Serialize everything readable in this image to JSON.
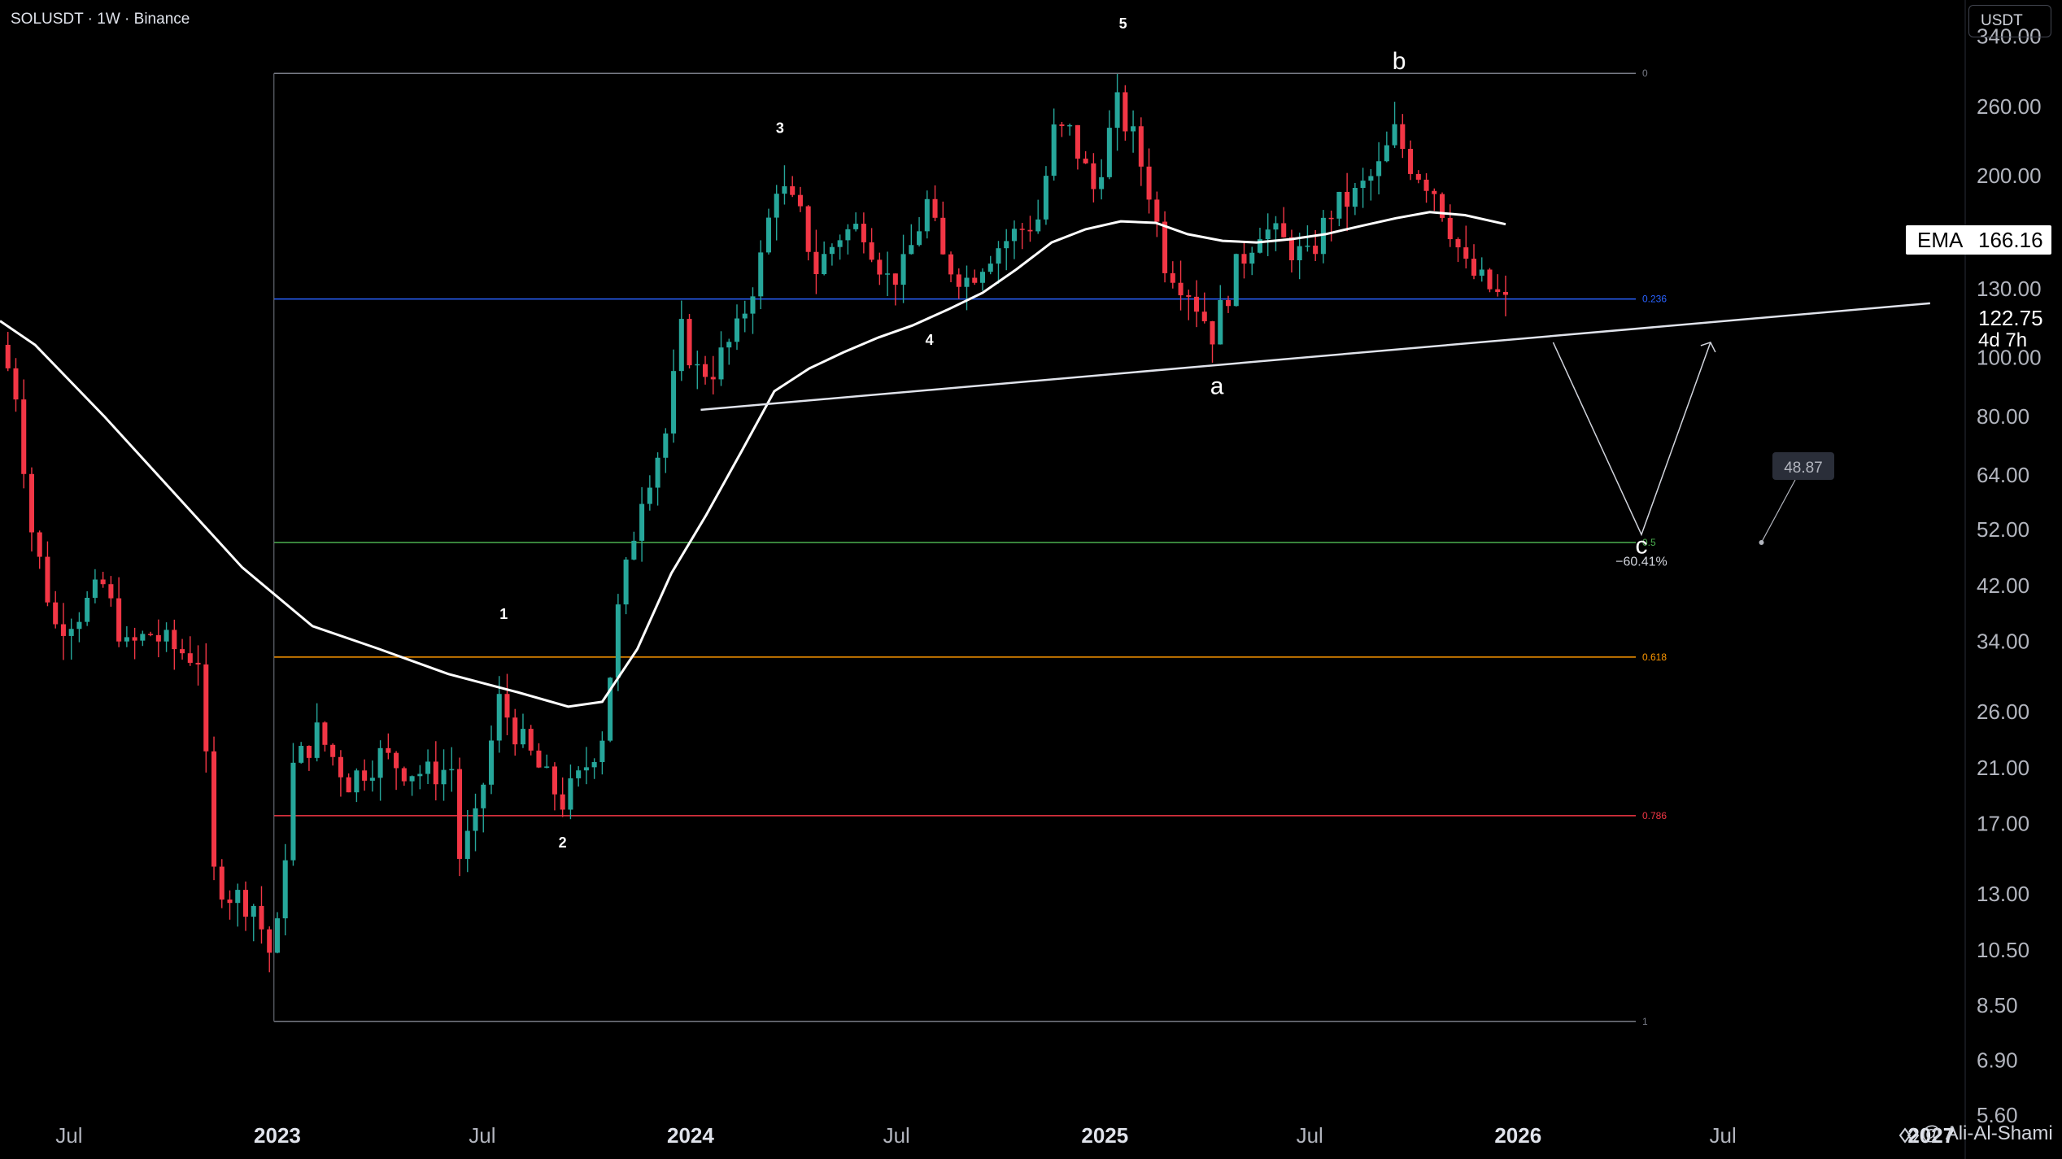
{
  "header": {
    "symbol": "SOLUSDT · 1W · Binance",
    "unit": "USDT"
  },
  "ema": {
    "label": "EMA",
    "value": "166.16"
  },
  "price_now": "122.75",
  "countdown": "4d 7h",
  "watermark": "@ Ali-Al-Shami",
  "annotation": {
    "pct": "−60.41%",
    "price_tag": "48.87"
  },
  "colors": {
    "up": "#26a69a",
    "down": "#f23645",
    "ema": "#ffffff",
    "fib_0": "#787b86",
    "fib_0236": "#2962ff",
    "fib_05": "#4caf50",
    "fib_0618": "#ff9800",
    "fib_0786": "#f23645",
    "fib_1": "#787b86"
  },
  "chart_data": {
    "type": "candlestick",
    "timeframe": "1W",
    "y_scale": "log",
    "ylim": [
      5.2,
      390
    ],
    "xlim": [
      "2022-05-01",
      "2027-01-31"
    ],
    "y_ticks": [
      "340.00",
      "260.00",
      "200.00",
      "130.00",
      "100.00",
      "80.00",
      "64.00",
      "52.00",
      "42.00",
      "34.00",
      "26.00",
      "21.00",
      "17.00",
      "13.00",
      "10.50",
      "8.50",
      "6.90",
      "5.60"
    ],
    "x_ticks": [
      {
        "date": "2022-07-01",
        "label": "Jul",
        "bold": false
      },
      {
        "date": "2023-01-01",
        "label": "2023",
        "bold": true
      },
      {
        "date": "2023-07-01",
        "label": "Jul",
        "bold": false
      },
      {
        "date": "2024-01-01",
        "label": "2024",
        "bold": true
      },
      {
        "date": "2024-07-01",
        "label": "Jul",
        "bold": false
      },
      {
        "date": "2025-01-01",
        "label": "2025",
        "bold": true
      },
      {
        "date": "2025-07-01",
        "label": "Jul",
        "bold": false
      },
      {
        "date": "2026-01-01",
        "label": "2026",
        "bold": true
      },
      {
        "date": "2026-07-01",
        "label": "Jul",
        "bold": false
      },
      {
        "date": "2027-01-01",
        "label": "2027",
        "bold": true
      }
    ],
    "price_path": [
      [
        "2022-05-01",
        105
      ],
      [
        "2022-05-15",
        88
      ],
      [
        "2022-05-29",
        52
      ],
      [
        "2022-06-19",
        36
      ],
      [
        "2022-07-10",
        38
      ],
      [
        "2022-07-31",
        42
      ],
      [
        "2022-08-21",
        33
      ],
      [
        "2022-09-11",
        35
      ],
      [
        "2022-10-02",
        33
      ],
      [
        "2022-10-23",
        32
      ],
      [
        "2022-11-06",
        14
      ],
      [
        "2022-11-20",
        13
      ],
      [
        "2022-12-11",
        12.5
      ],
      [
        "2022-12-29",
        9.9
      ],
      [
        "2023-01-15",
        21
      ],
      [
        "2023-02-05",
        24
      ],
      [
        "2023-03-05",
        20
      ],
      [
        "2023-04-02",
        22
      ],
      [
        "2023-04-23",
        21
      ],
      [
        "2023-05-14",
        20.5
      ],
      [
        "2023-06-04",
        21
      ],
      [
        "2023-06-11",
        15
      ],
      [
        "2023-06-25",
        17
      ],
      [
        "2023-07-16",
        27
      ],
      [
        "2023-08-06",
        23
      ],
      [
        "2023-08-27",
        20
      ],
      [
        "2023-09-10",
        18.5
      ],
      [
        "2023-09-24",
        20
      ],
      [
        "2023-10-15",
        24
      ],
      [
        "2023-10-29",
        38
      ],
      [
        "2023-11-19",
        60
      ],
      [
        "2023-12-10",
        75
      ],
      [
        "2023-12-24",
        110
      ],
      [
        "2024-01-07",
        95
      ],
      [
        "2024-01-21",
        96
      ],
      [
        "2024-02-11",
        110
      ],
      [
        "2024-03-03",
        145
      ],
      [
        "2024-03-17",
        195
      ],
      [
        "2024-04-07",
        170
      ],
      [
        "2024-04-21",
        140
      ],
      [
        "2024-05-12",
        160
      ],
      [
        "2024-06-02",
        165
      ],
      [
        "2024-06-23",
        135
      ],
      [
        "2024-07-07",
        140
      ],
      [
        "2024-07-28",
        180
      ],
      [
        "2024-08-11",
        145
      ],
      [
        "2024-09-01",
        135
      ],
      [
        "2024-09-22",
        150
      ],
      [
        "2024-10-13",
        160
      ],
      [
        "2024-11-03",
        170
      ],
      [
        "2024-11-17",
        235
      ],
      [
        "2024-12-01",
        235
      ],
      [
        "2024-12-22",
        190
      ],
      [
        "2025-01-12",
        260
      ],
      [
        "2025-01-26",
        230
      ],
      [
        "2025-02-09",
        190
      ],
      [
        "2025-02-23",
        145
      ],
      [
        "2025-03-16",
        130
      ],
      [
        "2025-04-06",
        110
      ],
      [
        "2025-04-27",
        140
      ],
      [
        "2025-05-18",
        165
      ],
      [
        "2025-06-08",
        155
      ],
      [
        "2025-06-29",
        145
      ],
      [
        "2025-07-20",
        175
      ],
      [
        "2025-08-10",
        185
      ],
      [
        "2025-08-31",
        205
      ],
      [
        "2025-09-14",
        235
      ],
      [
        "2025-09-28",
        210
      ],
      [
        "2025-10-19",
        190
      ],
      [
        "2025-11-02",
        165
      ],
      [
        "2025-11-16",
        140
      ],
      [
        "2025-12-07",
        130
      ],
      [
        "2025-12-21",
        122.75
      ]
    ],
    "ema_path": [
      [
        "2022-05-01",
        115
      ],
      [
        "2022-06-01",
        105
      ],
      [
        "2022-08-01",
        80
      ],
      [
        "2022-10-01",
        60
      ],
      [
        "2022-12-01",
        45
      ],
      [
        "2023-02-01",
        36
      ],
      [
        "2023-04-01",
        33
      ],
      [
        "2023-06-01",
        30
      ],
      [
        "2023-08-01",
        28
      ],
      [
        "2023-09-15",
        26.5
      ],
      [
        "2023-10-15",
        27
      ],
      [
        "2023-11-15",
        33
      ],
      [
        "2023-12-15",
        44
      ],
      [
        "2024-01-15",
        55
      ],
      [
        "2024-02-15",
        70
      ],
      [
        "2024-03-15",
        88
      ],
      [
        "2024-04-15",
        96
      ],
      [
        "2024-05-15",
        102
      ],
      [
        "2024-06-15",
        108
      ],
      [
        "2024-07-15",
        113
      ],
      [
        "2024-08-15",
        120
      ],
      [
        "2024-09-15",
        128
      ],
      [
        "2024-10-15",
        140
      ],
      [
        "2024-11-15",
        155
      ],
      [
        "2024-12-15",
        163
      ],
      [
        "2025-01-15",
        168
      ],
      [
        "2025-02-15",
        167
      ],
      [
        "2025-03-15",
        160
      ],
      [
        "2025-04-15",
        156
      ],
      [
        "2025-05-15",
        155
      ],
      [
        "2025-06-15",
        157
      ],
      [
        "2025-07-15",
        160
      ],
      [
        "2025-08-15",
        165
      ],
      [
        "2025-09-15",
        170
      ],
      [
        "2025-10-15",
        174
      ],
      [
        "2025-11-15",
        172
      ],
      [
        "2025-12-21",
        166.16
      ]
    ],
    "fib_levels": [
      {
        "level": "0",
        "price": 295
      },
      {
        "level": "0.236",
        "price": 125
      },
      {
        "level": "0.5",
        "price": 49.5
      },
      {
        "level": "0.618",
        "price": 32
      },
      {
        "level": "0.786",
        "price": 17.5
      },
      {
        "level": "1",
        "price": 8.0
      }
    ],
    "fib_start": "2022-12-29",
    "fib_end": "2026-04-15",
    "trendline": {
      "from": [
        "2024-01-10",
        82
      ],
      "to": [
        "2026-12-31",
        123
      ]
    },
    "projection": {
      "points": [
        [
          "2026-02-01",
          106
        ],
        [
          "2026-04-20",
          51
        ],
        [
          "2026-06-20",
          106
        ]
      ]
    },
    "price_tag": {
      "anchor": [
        "2026-08-04",
        49.5
      ],
      "box": [
        "2026-09-10",
        66
      ]
    },
    "wave_labels": [
      {
        "text": "1",
        "date": "2023-07-20",
        "price": 37,
        "size": "small"
      },
      {
        "text": "2",
        "date": "2023-09-10",
        "price": 15.5,
        "size": "small"
      },
      {
        "text": "3",
        "date": "2024-03-20",
        "price": 235,
        "size": "small"
      },
      {
        "text": "4",
        "date": "2024-07-30",
        "price": 105,
        "size": "small"
      },
      {
        "text": "5",
        "date": "2025-01-17",
        "price": 350,
        "size": "small"
      },
      {
        "text": "a",
        "date": "2025-04-10",
        "price": 87,
        "size": "large"
      },
      {
        "text": "b",
        "date": "2025-09-18",
        "price": 300,
        "size": "large"
      },
      {
        "text": "c",
        "date": "2026-04-20",
        "price": 47.5,
        "size": "large"
      }
    ]
  }
}
